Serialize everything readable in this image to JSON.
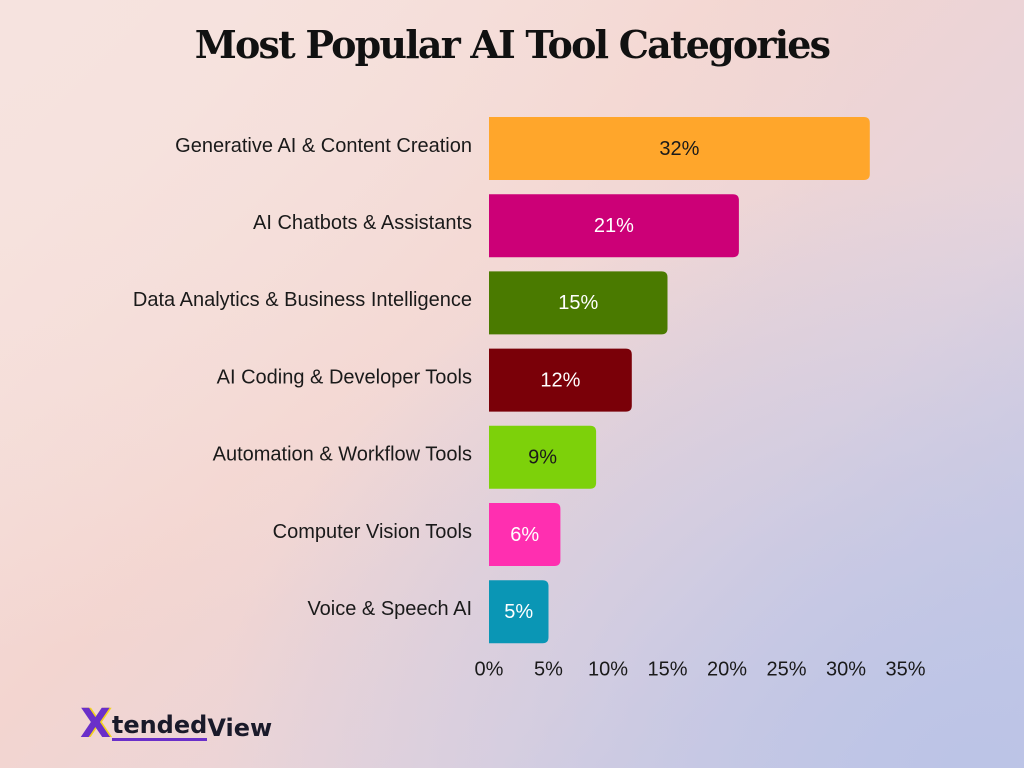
{
  "chart_data": {
    "type": "bar",
    "orientation": "horizontal",
    "title": "Most Popular AI Tool Categories",
    "categories": [
      "Generative AI & Content Creation",
      "AI Chatbots & Assistants",
      "Data Analytics & Business Intelligence",
      "AI Coding & Developer Tools",
      "Automation & Workflow Tools",
      "Computer Vision Tools",
      "Voice & Speech AI"
    ],
    "values": [
      32,
      21,
      15,
      12,
      9,
      6,
      5
    ],
    "value_labels": [
      "32%",
      "21%",
      "15%",
      "12%",
      "9%",
      "6%",
      "5%"
    ],
    "colors": [
      "#ffa62b",
      "#cc0077",
      "#4a7a00",
      "#7a0008",
      "#7dd10a",
      "#ff2fb0",
      "#0a96b5"
    ],
    "value_label_colors": [
      "#1a1a1a",
      "#ffffff",
      "#ffffff",
      "#ffffff",
      "#1a1a1a",
      "#ffffff",
      "#ffffff"
    ],
    "xlim": [
      0,
      35
    ],
    "xticks": [
      0,
      5,
      10,
      15,
      20,
      25,
      30,
      35
    ],
    "xtick_labels": [
      "0%",
      "5%",
      "10%",
      "15%",
      "20%",
      "25%",
      "30%",
      "35%"
    ],
    "xlabel": "",
    "ylabel": "",
    "grid": false,
    "legend": "none"
  },
  "brand": {
    "logo_text_first": "tended",
    "logo_text_second": "View",
    "logo_letter": "X",
    "logo_accent": "#6a2fc9"
  }
}
